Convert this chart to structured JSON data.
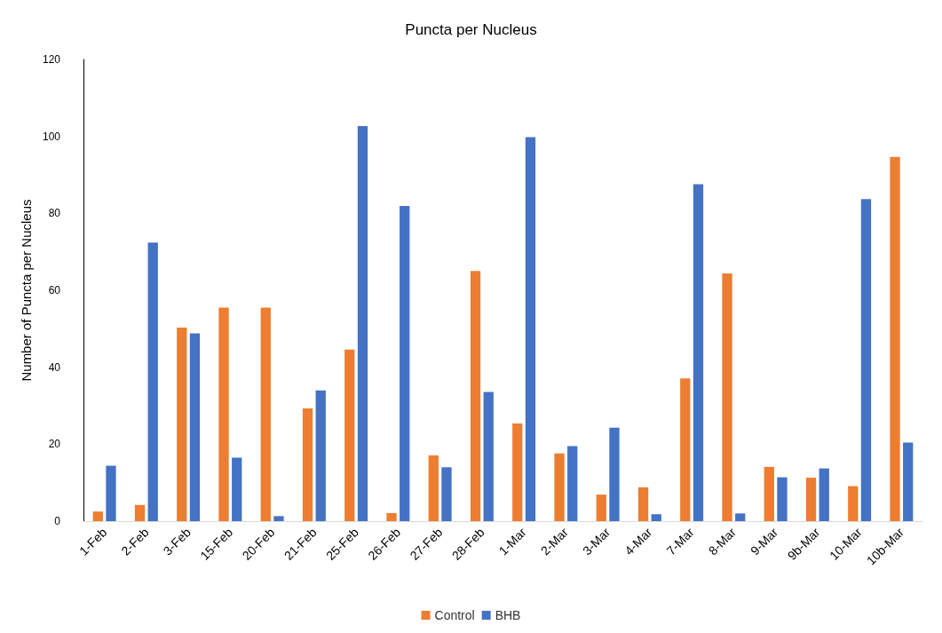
{
  "chart_data": {
    "type": "bar",
    "title": "Puncta per Nucleus",
    "ylabel": "Number of Puncta per Nucleus",
    "categories": [
      "1-Feb",
      "2-Feb",
      "3-Feb",
      "15-Feb",
      "20-Feb",
      "21-Feb",
      "25-Feb",
      "26-Feb",
      "27-Feb",
      "28-Feb",
      "1-Mar",
      "2-Mar",
      "3-Mar",
      "4-Mar",
      "7-Mar",
      "8-Mar",
      "9-Mar",
      "9b-Mar",
      "10-Mar",
      "10b-Mar"
    ],
    "series": [
      {
        "name": "Control",
        "color": "#ed7d31",
        "values": [
          2.5,
          4.2,
          50.3,
          55.5,
          55.5,
          29.3,
          44.6,
          2.1,
          17.1,
          65,
          25.4,
          17.6,
          6.9,
          8.8,
          37.1,
          64.4,
          14.1,
          11.3,
          9.1,
          94.7
        ]
      },
      {
        "name": "BHB",
        "color": "#4472c4",
        "values": [
          14.4,
          72.4,
          48.8,
          16.5,
          1.3,
          34,
          102.7,
          81.9,
          14,
          33.6,
          99.8,
          19.5,
          24.3,
          1.8,
          87.6,
          2,
          11.4,
          13.7,
          83.7,
          20.4
        ]
      }
    ],
    "ylim": [
      0,
      120
    ],
    "yticks": [
      0,
      20,
      40,
      60,
      80,
      100,
      120
    ],
    "grid": false,
    "legend": "bottom"
  }
}
